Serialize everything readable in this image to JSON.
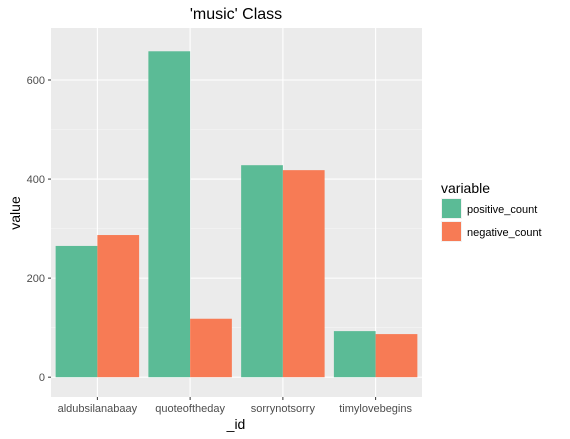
{
  "chart_data": {
    "type": "bar",
    "title": "'music' Class",
    "xlabel": "_id",
    "ylabel": "value",
    "categories": [
      "aldubsilanabaay",
      "quoteoftheday",
      "sorrynotsorry",
      "timylovebegins"
    ],
    "series": [
      {
        "name": "positive_count",
        "color": "#5bbb96",
        "values": [
          265,
          658,
          428,
          93
        ]
      },
      {
        "name": "negative_count",
        "color": "#f77b55",
        "values": [
          287,
          118,
          418,
          87
        ]
      }
    ],
    "ylim": [
      -40,
      705
    ],
    "yticks": [
      0,
      200,
      400,
      600
    ],
    "grid": true,
    "legend": {
      "title": "variable",
      "position": "right"
    }
  }
}
